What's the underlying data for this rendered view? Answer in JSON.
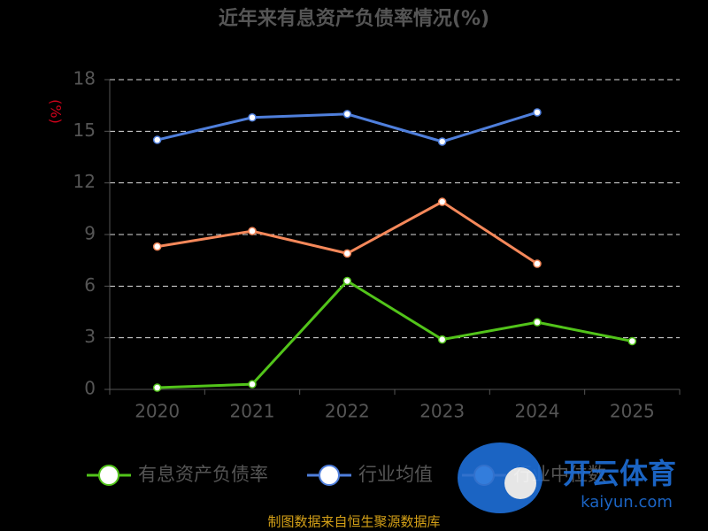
{
  "chart_data": {
    "type": "line",
    "title": "近年来有息资产负债率情况(%)",
    "y_label": "(%)",
    "categories": [
      "2020",
      "2021",
      "2022",
      "2023",
      "2024",
      "2025"
    ],
    "series": [
      {
        "name": "有息资产负债率",
        "color": "#52c41a",
        "values": [
          0.1,
          0.3,
          6.3,
          2.9,
          3.9,
          2.8
        ]
      },
      {
        "name": "行业均值",
        "color": "#4f7fdc",
        "values": [
          14.5,
          15.8,
          16.0,
          14.4,
          16.1,
          null
        ]
      },
      {
        "name": "行业中位数",
        "color": "#f5885a",
        "values": [
          8.3,
          9.2,
          7.9,
          10.9,
          7.3,
          null
        ]
      }
    ],
    "ylim": [
      0,
      18
    ],
    "yticks": [
      0,
      3,
      6,
      9,
      12,
      15,
      18
    ],
    "grid": true,
    "footer": "制图数据来自恒生聚源数据库",
    "watermark": {
      "title": "开云体育",
      "url": "kaiyun.com"
    }
  }
}
